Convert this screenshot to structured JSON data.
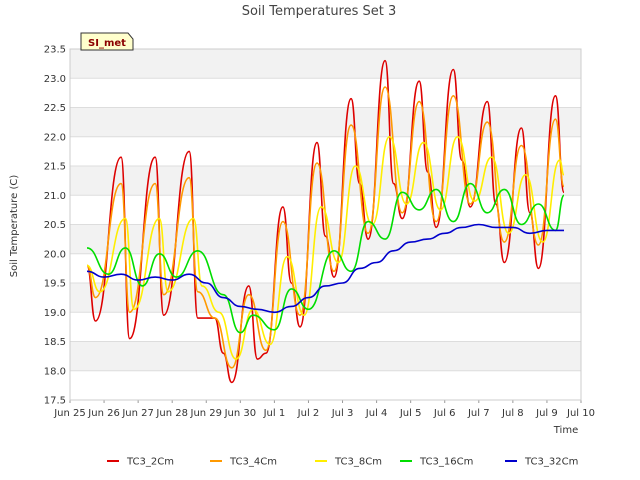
{
  "chart_data": {
    "type": "line",
    "title": "Soil Temperatures Set 3",
    "xlabel": "Time",
    "ylabel": "Soil Temperature (C)",
    "badge": "SI_met",
    "ylim": [
      17.5,
      23.5
    ],
    "xlim_days": [
      0,
      15
    ],
    "yticks": [
      "17.5",
      "18.0",
      "18.5",
      "19.0",
      "19.5",
      "20.0",
      "20.5",
      "21.0",
      "21.5",
      "22.0",
      "22.5",
      "23.0",
      "23.5"
    ],
    "xticks": [
      "Jun 25",
      "Jun 26",
      "Jun 27",
      "Jun 28",
      "Jun 29",
      "Jun 30",
      "Jul 1",
      "Jul 2",
      "Jul 3",
      "Jul 4",
      "Jul 5",
      "Jul 6",
      "Jul 7",
      "Jul 8",
      "Jul 9",
      "Jul 10"
    ],
    "grid": true,
    "legend_position": "bottom",
    "series": [
      {
        "name": "TC3_2Cm",
        "color": "#dd0000",
        "x": [
          "Jun 25 12:00",
          "Jun 25 18:00",
          "Jun 26 12:00",
          "Jun 26 18:00",
          "Jun 27 12:00",
          "Jun 27 18:00",
          "Jun 28 12:00",
          "Jun 28 18:00",
          "Jun 29 06:00",
          "Jun 29 12:00",
          "Jun 29 18:00",
          "Jun 30 06:00",
          "Jun 30 12:00",
          "Jun 30 18:00",
          "Jul 1 06:00",
          "Jul 1 12:00",
          "Jul 1 18:00",
          "Jul 2 06:00",
          "Jul 2 12:00",
          "Jul 2 18:00",
          "Jul 3 06:00",
          "Jul 3 12:00",
          "Jul 3 18:00",
          "Jul 4 06:00",
          "Jul 4 12:00",
          "Jul 4 18:00",
          "Jul 5 06:00",
          "Jul 5 12:00",
          "Jul 5 18:00",
          "Jul 6 06:00",
          "Jul 6 12:00",
          "Jul 6 18:00",
          "Jul 7 06:00",
          "Jul 7 12:00",
          "Jul 7 18:00",
          "Jul 8 06:00",
          "Jul 8 12:00",
          "Jul 8 18:00",
          "Jul 9 06:00",
          "Jul 9 12:00"
        ],
        "y": [
          19.8,
          18.85,
          21.65,
          18.55,
          21.65,
          18.95,
          21.75,
          18.9,
          18.9,
          18.3,
          17.8,
          19.45,
          18.2,
          18.3,
          20.8,
          19.5,
          18.75,
          21.9,
          20.3,
          19.6,
          22.65,
          21.2,
          20.25,
          23.3,
          21.2,
          20.6,
          22.95,
          21.4,
          20.45,
          23.15,
          21.6,
          20.8,
          22.6,
          20.85,
          19.85,
          22.15,
          20.7,
          19.75,
          22.7,
          21.05
        ]
      },
      {
        "name": "TC3_4Cm",
        "color": "#ff9900",
        "x": [
          "Jun 25 12:00",
          "Jun 25 18:00",
          "Jun 26 12:00",
          "Jun 26 18:00",
          "Jun 27 12:00",
          "Jun 27 18:00",
          "Jun 28 12:00",
          "Jun 28 18:00",
          "Jun 29 06:00",
          "Jun 29 18:00",
          "Jun 30 06:00",
          "Jun 30 18:00",
          "Jul 1 06:00",
          "Jul 1 18:00",
          "Jul 2 06:00",
          "Jul 2 18:00",
          "Jul 3 06:00",
          "Jul 3 18:00",
          "Jul 4 06:00",
          "Jul 4 18:00",
          "Jul 5 06:00",
          "Jul 5 18:00",
          "Jul 6 06:00",
          "Jul 6 18:00",
          "Jul 7 06:00",
          "Jul 7 18:00",
          "Jul 8 06:00",
          "Jul 8 18:00",
          "Jul 9 06:00",
          "Jul 9 12:00"
        ],
        "y": [
          19.8,
          19.25,
          21.2,
          19.0,
          21.2,
          19.3,
          21.3,
          19.35,
          18.9,
          18.05,
          19.3,
          18.35,
          20.55,
          18.95,
          21.55,
          19.7,
          22.2,
          20.35,
          22.85,
          20.7,
          22.6,
          20.55,
          22.7,
          20.85,
          22.25,
          20.2,
          21.85,
          20.15,
          22.3,
          21.15
        ]
      },
      {
        "name": "TC3_8Cm",
        "color": "#ffee00",
        "x": [
          "Jun 25 12:00",
          "Jun 25 21:00",
          "Jun 26 15:00",
          "Jun 26 21:00",
          "Jun 27 15:00",
          "Jun 27 21:00",
          "Jun 28 15:00",
          "Jun 28 21:00",
          "Jun 29 09:00",
          "Jun 29 21:00",
          "Jun 30 09:00",
          "Jun 30 21:00",
          "Jul 1 09:00",
          "Jul 1 21:00",
          "Jul 2 09:00",
          "Jul 2 21:00",
          "Jul 3 09:00",
          "Jul 3 21:00",
          "Jul 4 09:00",
          "Jul 4 21:00",
          "Jul 5 09:00",
          "Jul 5 21:00",
          "Jul 6 09:00",
          "Jul 6 21:00",
          "Jul 7 09:00",
          "Jul 7 21:00",
          "Jul 8 09:00",
          "Jul 8 21:00",
          "Jul 9 09:00",
          "Jul 9 12:00"
        ],
        "y": [
          19.8,
          19.35,
          20.6,
          19.05,
          20.6,
          19.35,
          20.6,
          19.45,
          19.0,
          18.2,
          19.05,
          18.45,
          19.95,
          18.95,
          20.8,
          19.85,
          21.5,
          20.5,
          22.0,
          20.85,
          21.9,
          20.75,
          22.0,
          20.9,
          21.65,
          20.35,
          21.35,
          20.2,
          21.6,
          21.35
        ]
      },
      {
        "name": "TC3_16Cm",
        "color": "#00dd00",
        "x": [
          "Jun 25 12:00",
          "Jun 26 03:00",
          "Jun 26 15:00",
          "Jun 27 03:00",
          "Jun 27 15:00",
          "Jun 28 03:00",
          "Jun 28 18:00",
          "Jun 29 12:00",
          "Jun 30 00:00",
          "Jun 30 09:00",
          "Jul 1 00:00",
          "Jul 1 12:00",
          "Jul 2 00:00",
          "Jul 2 18:00",
          "Jul 3 06:00",
          "Jul 3 18:00",
          "Jul 4 06:00",
          "Jul 4 18:00",
          "Jul 5 06:00",
          "Jul 5 18:00",
          "Jul 6 06:00",
          "Jul 6 18:00",
          "Jul 7 06:00",
          "Jul 7 18:00",
          "Jul 8 06:00",
          "Jul 8 18:00",
          "Jul 9 06:00",
          "Jul 9 12:00"
        ],
        "y": [
          20.1,
          19.65,
          20.1,
          19.45,
          20.0,
          19.6,
          20.05,
          19.3,
          18.65,
          18.95,
          18.7,
          19.4,
          19.05,
          20.05,
          19.7,
          20.55,
          20.25,
          21.05,
          20.75,
          21.1,
          20.55,
          21.2,
          20.7,
          21.1,
          20.5,
          20.85,
          20.4,
          21.0
        ]
      },
      {
        "name": "TC3_32Cm",
        "color": "#0000cc",
        "x": [
          "Jun 25 12:00",
          "Jun 26 00:00",
          "Jun 26 12:00",
          "Jun 27 00:00",
          "Jun 27 12:00",
          "Jun 28 00:00",
          "Jun 28 12:00",
          "Jun 29 00:00",
          "Jun 29 12:00",
          "Jun 30 00:00",
          "Jun 30 12:00",
          "Jul 1 00:00",
          "Jul 1 12:00",
          "Jul 2 00:00",
          "Jul 2 12:00",
          "Jul 3 00:00",
          "Jul 3 12:00",
          "Jul 4 00:00",
          "Jul 4 12:00",
          "Jul 5 00:00",
          "Jul 5 12:00",
          "Jul 6 00:00",
          "Jul 6 12:00",
          "Jul 7 00:00",
          "Jul 7 12:00",
          "Jul 8 00:00",
          "Jul 8 12:00",
          "Jul 9 00:00",
          "Jul 9 12:00"
        ],
        "y": [
          19.7,
          19.6,
          19.65,
          19.55,
          19.6,
          19.55,
          19.65,
          19.5,
          19.25,
          19.1,
          19.05,
          19.0,
          19.1,
          19.25,
          19.45,
          19.5,
          19.75,
          19.85,
          20.05,
          20.2,
          20.25,
          20.35,
          20.45,
          20.5,
          20.45,
          20.45,
          20.35,
          20.4,
          20.4
        ]
      }
    ]
  }
}
